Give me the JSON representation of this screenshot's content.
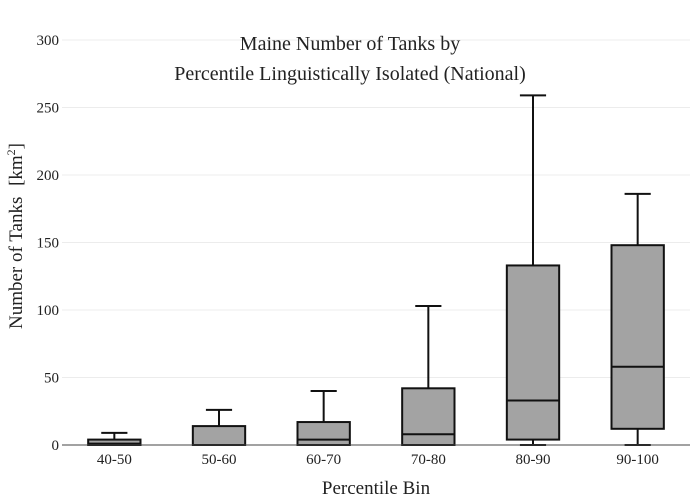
{
  "chart_data": {
    "type": "box",
    "title_lines": [
      "Maine Number of Tanks by",
      "Percentile Linguistically Isolated (National)"
    ],
    "xlabel": "Percentile Bin",
    "ylabel": "Number of Tanks",
    "ylabel_unit_base": "[km",
    "ylabel_unit_exp": "2",
    "ylabel_unit_close": "]",
    "ylim": [
      0,
      300
    ],
    "yticks": [
      0,
      50,
      100,
      150,
      200,
      250,
      300
    ],
    "grid": true,
    "categories": [
      "40-50",
      "50-60",
      "60-70",
      "70-80",
      "80-90",
      "90-100"
    ],
    "boxes": [
      {
        "category": "40-50",
        "min": 0,
        "q1": 0,
        "median": 1,
        "q3": 4,
        "max": 9
      },
      {
        "category": "50-60",
        "min": 0,
        "q1": 0,
        "median": 0,
        "q3": 14,
        "max": 26
      },
      {
        "category": "60-70",
        "min": 0,
        "q1": 0,
        "median": 4,
        "q3": 17,
        "max": 40
      },
      {
        "category": "70-80",
        "min": 0,
        "q1": 0,
        "median": 8,
        "q3": 42,
        "max": 103
      },
      {
        "category": "80-90",
        "min": 0,
        "q1": 4,
        "median": 33,
        "q3": 133,
        "max": 259
      },
      {
        "category": "90-100",
        "min": 0,
        "q1": 12,
        "median": 58,
        "q3": 148,
        "max": 186
      }
    ],
    "colors": {
      "box_fill": "#a3a3a3",
      "box_stroke": "#111111",
      "grid": "#ececec"
    }
  }
}
